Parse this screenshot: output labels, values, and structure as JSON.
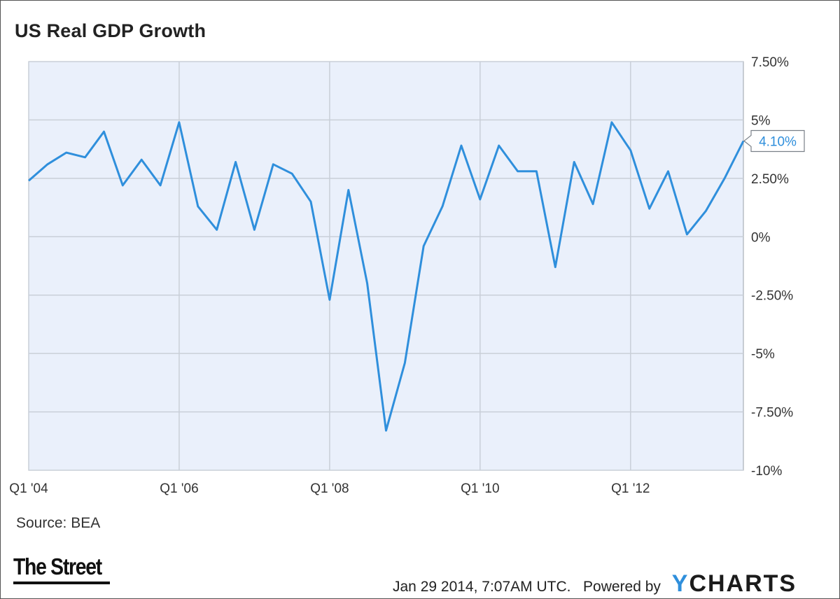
{
  "chart_data": {
    "type": "line",
    "title": "US Real GDP Growth",
    "xlabel": "",
    "ylabel": "",
    "x_tick_labels": [
      "Q1  '04",
      "Q1  '06",
      "Q1  '08",
      "Q1  '10",
      "Q1  '12"
    ],
    "x_tick_index": [
      0,
      8,
      16,
      24,
      32
    ],
    "y_tick_labels": [
      "7.50%",
      "5%",
      "2.50%",
      "0%",
      "-2.50%",
      "-5%",
      "-7.50%",
      "-10%"
    ],
    "y_ticks": [
      7.5,
      5,
      2.5,
      0,
      -2.5,
      -5,
      -7.5,
      -10
    ],
    "ylim": [
      -10,
      7.5
    ],
    "grid": true,
    "axis_side": "right",
    "colors": {
      "line": "#2f8fdc",
      "plot_bg": "#eaf0fb",
      "grid": "#c9cfd8"
    },
    "series": [
      {
        "values": [
          2.4,
          3.1,
          3.6,
          3.4,
          4.5,
          2.2,
          3.3,
          2.2,
          4.9,
          1.3,
          0.3,
          3.2,
          0.3,
          3.1,
          2.7,
          1.5,
          -2.7,
          2.0,
          -2.0,
          -8.3,
          -5.4,
          -0.4,
          1.3,
          3.9,
          1.6,
          3.9,
          2.8,
          2.8,
          -1.3,
          3.2,
          1.4,
          4.9,
          3.7,
          1.2,
          2.8,
          0.1,
          1.1,
          2.5,
          4.1
        ]
      }
    ],
    "last_value_label": "4.10%"
  },
  "source": "Source: BEA",
  "logo_left": "The Street",
  "footer": {
    "timestamp": "Jan 29 2014, 7:07AM UTC.",
    "powered_by": "Powered by",
    "logo_y": "Y",
    "logo_rest": "CHARTS"
  }
}
